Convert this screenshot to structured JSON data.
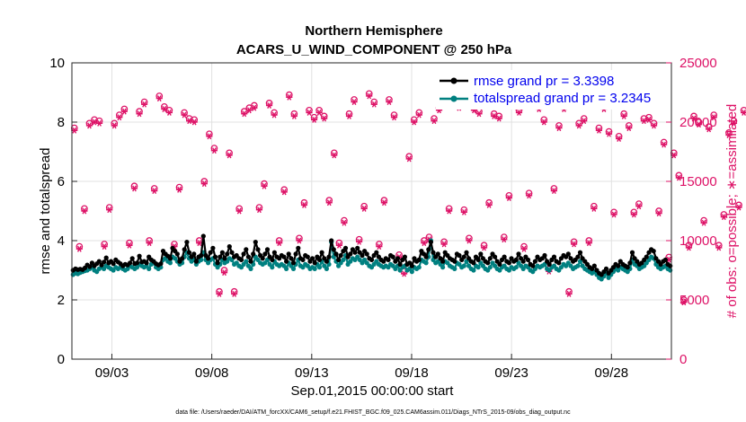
{
  "chart_data": {
    "type": "line",
    "title": "Northern Hemisphere",
    "subtitle": "ACARS_U_WIND_COMPONENT @ 250 hPa",
    "xlabel": "Sep.01,2015 00:00:00 start",
    "ylabel_left": "rmse and totalspread",
    "ylabel_right": "# of obs: o=possible; ∗=assimilated",
    "footer": "data file: /Users/raeder/DAI/ATM_forcXX/CAM6_setup/f.e21.FHIST_BGC.f09_025.CAM6assim.011/Diags_NTrS_2015-09/obs_diag_output.nc",
    "xlim": [
      1,
      31
    ],
    "ylim_left": [
      0,
      10
    ],
    "ylim_right": [
      0,
      25000
    ],
    "x_ticks": [
      {
        "value": 3,
        "label": "09/03"
      },
      {
        "value": 8,
        "label": "09/08"
      },
      {
        "value": 13,
        "label": "09/13"
      },
      {
        "value": 18,
        "label": "09/18"
      },
      {
        "value": 23,
        "label": "09/23"
      },
      {
        "value": 28,
        "label": "09/28"
      }
    ],
    "y_ticks_left": [
      "0",
      "2",
      "4",
      "6",
      "8",
      "10"
    ],
    "y_ticks_right": [
      "0",
      "5000",
      "10000",
      "15000",
      "20000",
      "25000"
    ],
    "series": [
      {
        "name": "rmse",
        "legend": "rmse grand pr = 3.3398",
        "color": "#000000",
        "values": [
          3.0,
          3.05,
          3.02,
          3.04,
          3.02,
          3.08,
          3.18,
          3.12,
          3.25,
          3.15,
          3.22,
          3.3,
          3.18,
          3.28,
          3.42,
          3.25,
          3.3,
          3.22,
          3.35,
          3.28,
          3.22,
          3.15,
          3.2,
          3.18,
          3.25,
          3.4,
          3.22,
          3.25,
          3.48,
          3.28,
          3.3,
          3.25,
          3.45,
          3.35,
          3.3,
          3.22,
          3.18,
          3.22,
          3.65,
          3.55,
          3.48,
          3.4,
          3.75,
          3.65,
          3.55,
          3.3,
          3.4,
          3.7,
          3.95,
          3.6,
          3.45,
          3.55,
          3.3,
          3.45,
          3.5,
          4.15,
          3.5,
          3.4,
          3.6,
          3.75,
          3.45,
          3.25,
          3.45,
          3.6,
          3.4,
          3.55,
          3.8,
          3.6,
          3.45,
          3.5,
          3.4,
          3.35,
          3.55,
          3.7,
          3.45,
          3.3,
          3.55,
          3.95,
          3.7,
          3.5,
          3.4,
          3.55,
          3.7,
          3.45,
          3.35,
          3.6,
          3.45,
          3.4,
          3.5,
          3.45,
          3.3,
          3.55,
          3.4,
          3.25,
          3.55,
          3.75,
          3.4,
          3.35,
          3.5,
          3.45,
          3.3,
          3.4,
          3.25,
          3.45,
          3.35,
          3.6,
          3.4,
          3.3,
          3.45,
          4.0,
          3.7,
          3.55,
          3.35,
          3.5,
          3.65,
          3.75,
          3.45,
          3.55,
          3.7,
          3.6,
          3.75,
          3.6,
          3.5,
          3.65,
          3.55,
          3.4,
          3.35,
          3.5,
          3.6,
          3.45,
          3.35,
          3.3,
          3.4,
          3.35,
          3.5,
          3.45,
          3.3,
          3.4,
          3.2,
          3.35,
          3.45,
          3.2,
          3.25,
          3.15,
          3.4,
          3.3,
          3.35,
          3.65,
          3.55,
          3.45,
          3.7,
          3.95,
          3.6,
          3.45,
          3.55,
          3.4,
          3.3,
          3.6,
          3.5,
          3.4,
          3.35,
          3.3,
          3.55,
          3.5,
          3.35,
          3.45,
          3.6,
          3.4,
          3.3,
          3.25,
          3.45,
          3.35,
          3.55,
          3.4,
          3.3,
          3.25,
          3.4,
          3.55,
          3.45,
          3.3,
          3.2,
          3.35,
          3.45,
          3.3,
          3.25,
          3.4,
          3.3,
          3.35,
          3.55,
          3.4,
          3.3,
          3.45,
          3.35,
          3.2,
          3.15,
          3.3,
          3.45,
          3.35,
          3.4,
          3.5,
          3.3,
          3.2,
          3.35,
          3.45,
          3.3,
          3.25,
          3.4,
          3.5,
          3.45,
          3.55,
          3.4,
          3.3,
          3.35,
          3.45,
          3.6,
          3.4,
          3.3,
          3.2,
          3.1,
          3.05,
          3.15,
          3.0,
          2.9,
          2.85,
          2.95,
          3.05,
          2.9,
          3.0,
          3.1,
          3.2,
          3.15,
          3.3,
          3.2,
          3.15,
          3.1,
          3.25,
          3.6,
          3.4,
          3.3,
          3.2,
          3.25,
          3.35,
          3.45,
          3.6,
          3.7,
          3.65,
          3.4,
          3.3,
          3.2,
          3.3,
          3.35,
          3.2,
          3.15
        ]
      },
      {
        "name": "totalspread",
        "legend": "totalspread grand pr = 3.2345",
        "color": "#008080",
        "values": [
          2.85,
          2.9,
          2.88,
          2.92,
          2.95,
          2.98,
          3.0,
          3.05,
          3.1,
          3.0,
          2.95,
          3.05,
          3.1,
          3.05,
          3.15,
          3.1,
          3.05,
          3.0,
          3.1,
          3.05,
          3.1,
          3.05,
          3.0,
          3.05,
          3.15,
          3.1,
          3.05,
          3.1,
          3.2,
          3.15,
          3.1,
          3.15,
          3.05,
          3.2,
          3.25,
          3.1,
          3.05,
          3.1,
          3.35,
          3.4,
          3.3,
          3.25,
          3.45,
          3.4,
          3.3,
          3.2,
          3.25,
          3.45,
          3.6,
          3.4,
          3.3,
          3.35,
          3.2,
          3.3,
          3.35,
          3.6,
          3.35,
          3.25,
          3.35,
          3.4,
          3.2,
          3.1,
          3.2,
          3.35,
          3.25,
          3.3,
          3.4,
          3.35,
          3.2,
          3.25,
          3.15,
          3.1,
          3.2,
          3.3,
          3.15,
          3.05,
          3.2,
          3.45,
          3.35,
          3.25,
          3.2,
          3.25,
          3.35,
          3.2,
          3.1,
          3.3,
          3.2,
          3.15,
          3.2,
          3.15,
          3.05,
          3.25,
          3.15,
          3.05,
          3.2,
          3.35,
          3.15,
          3.1,
          3.2,
          3.15,
          3.05,
          3.1,
          3.05,
          3.2,
          3.1,
          3.3,
          3.15,
          3.05,
          3.2,
          3.95,
          3.45,
          3.3,
          3.15,
          3.25,
          3.35,
          3.5,
          3.2,
          3.3,
          3.4,
          3.35,
          3.45,
          3.35,
          3.25,
          3.35,
          3.25,
          3.15,
          3.1,
          3.2,
          3.3,
          3.2,
          3.15,
          3.1,
          3.15,
          3.1,
          3.2,
          3.15,
          3.05,
          3.15,
          3.0,
          3.1,
          3.15,
          3.0,
          3.05,
          2.95,
          3.1,
          3.05,
          3.1,
          3.35,
          3.3,
          3.25,
          3.45,
          4.0,
          3.35,
          3.25,
          3.3,
          3.2,
          3.1,
          3.3,
          3.25,
          3.15,
          3.1,
          3.05,
          3.25,
          3.2,
          3.1,
          3.15,
          3.3,
          3.15,
          3.05,
          3.0,
          3.15,
          3.1,
          3.25,
          3.15,
          3.05,
          3.0,
          3.1,
          3.25,
          3.15,
          3.05,
          3.0,
          3.1,
          3.15,
          3.05,
          3.0,
          3.1,
          3.05,
          3.1,
          3.25,
          3.15,
          3.05,
          3.15,
          3.1,
          3.0,
          2.95,
          3.05,
          3.15,
          3.1,
          3.15,
          3.2,
          3.05,
          3.0,
          3.1,
          3.15,
          3.05,
          3.0,
          3.1,
          3.2,
          3.15,
          3.25,
          3.15,
          3.05,
          3.1,
          3.15,
          3.3,
          3.15,
          3.05,
          3.0,
          2.95,
          2.9,
          2.95,
          2.85,
          2.75,
          2.7,
          2.8,
          2.9,
          2.75,
          2.85,
          2.95,
          3.05,
          3.0,
          3.1,
          3.05,
          3.0,
          2.95,
          3.05,
          3.35,
          3.2,
          3.15,
          3.05,
          3.1,
          3.15,
          3.25,
          3.35,
          3.45,
          3.4,
          3.2,
          3.1,
          3.05,
          3.1,
          3.15,
          3.05,
          3.0
        ]
      }
    ],
    "obs_series": {
      "name": "# of obs",
      "color": "#dd1166",
      "x_start": 1.125,
      "x_step": 0.25,
      "possible": [
        19500,
        9500,
        12700,
        19900,
        20200,
        20100,
        9700,
        12800,
        19900,
        20600,
        21100,
        9800,
        14600,
        20900,
        21700,
        10000,
        14400,
        22200,
        21300,
        21000,
        9700,
        14500,
        20800,
        20300,
        20200,
        10000,
        15000,
        19000,
        17800,
        5700,
        7500,
        17400,
        5700,
        12700,
        20900,
        21200,
        21400,
        12800,
        14800,
        21600,
        20800,
        10000,
        14300,
        22300,
        20700,
        10200,
        13200,
        21000,
        20400,
        21000,
        20500,
        13400,
        17400,
        9800,
        11700,
        20700,
        21900,
        10100,
        12900,
        22400,
        21700,
        9700,
        13400,
        21900,
        20600,
        8800,
        7400,
        17100,
        20200,
        20800,
        10000,
        10300,
        20300,
        21200,
        9900,
        12700,
        21900,
        21400,
        12600,
        10200,
        21200,
        20900,
        9600,
        13200,
        20700,
        20500,
        10300,
        13800,
        22400,
        21000,
        9500,
        14000,
        22200,
        21300,
        20200,
        7600,
        14400,
        19700,
        21300,
        5700,
        9900,
        19900,
        20300,
        10000,
        12900,
        19500,
        21300,
        19200,
        12400,
        18800,
        20700,
        19700,
        12400,
        13100,
        20300,
        20400,
        19900,
        12500,
        18300,
        8600,
        17400,
        15500,
        5000,
        9600,
        20500,
        20000,
        11700,
        19600,
        20600,
        9600,
        12200,
        19100,
        20100,
        13000,
        21000
      ],
      "assimilated": [
        19300,
        9300,
        12500,
        19700,
        20000,
        19900,
        9500,
        12600,
        19700,
        20400,
        20900,
        9600,
        14400,
        20700,
        21500,
        9800,
        14200,
        22000,
        21100,
        20800,
        9500,
        14300,
        20600,
        20100,
        20000,
        9800,
        14800,
        18800,
        17600,
        5500,
        7300,
        17200,
        5500,
        12500,
        20700,
        21000,
        21200,
        12600,
        14600,
        21400,
        20600,
        9800,
        14100,
        22100,
        20500,
        10000,
        13000,
        20800,
        20200,
        20800,
        20300,
        13200,
        17200,
        9600,
        11500,
        20500,
        21700,
        9900,
        12700,
        22200,
        21500,
        9500,
        13200,
        21700,
        20400,
        8600,
        7200,
        16900,
        20000,
        20600,
        9800,
        10100,
        20100,
        21000,
        9700,
        12500,
        21700,
        21200,
        12400,
        10000,
        21000,
        20700,
        9400,
        13000,
        20500,
        20300,
        10100,
        13600,
        22200,
        20800,
        9300,
        13800,
        22000,
        21100,
        20000,
        7400,
        14200,
        19500,
        21100,
        5500,
        9700,
        19700,
        20100,
        9800,
        12700,
        19300,
        21100,
        19000,
        12200,
        18600,
        20500,
        19500,
        12200,
        12900,
        20100,
        20200,
        19700,
        12300,
        18100,
        8400,
        17200,
        15300,
        4800,
        9400,
        20300,
        19800,
        11500,
        19400,
        20400,
        9400,
        12000,
        18900,
        19900,
        12800,
        20800
      ]
    },
    "legend_position": "top-right",
    "grid": true
  }
}
